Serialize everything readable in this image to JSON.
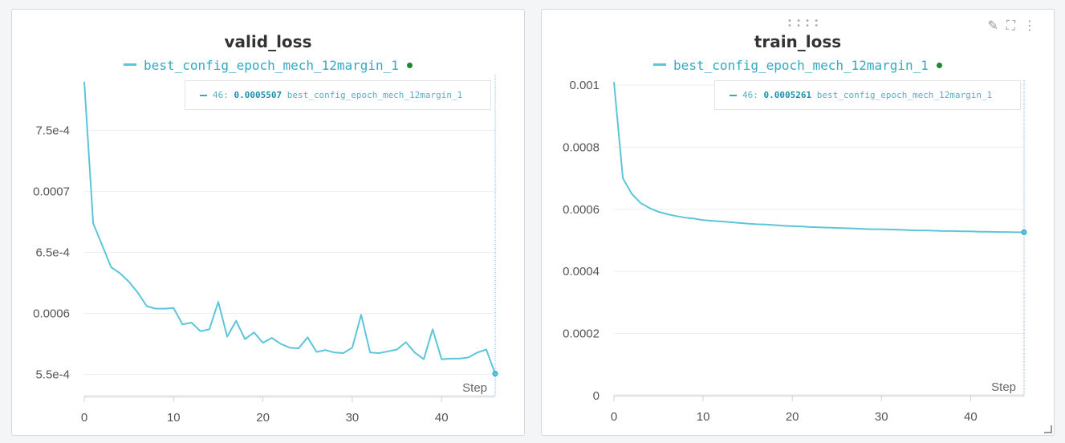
{
  "chart_data": [
    {
      "type": "line",
      "title": "valid_loss",
      "xlabel": "Step",
      "ylabel": "",
      "xlim": [
        0,
        46
      ],
      "ylim": [
        0.000532,
        0.0007912
      ],
      "x_ticks": [
        0,
        10,
        20,
        30,
        40
      ],
      "y_ticks": [
        0.00055,
        0.0006,
        0.00065,
        0.0007,
        0.00075
      ],
      "y_tick_labels": [
        "5.5e-4",
        "0.0006",
        "6.5e-4",
        "0.0007",
        "7.5e-4"
      ],
      "legend": "top-center",
      "grid": true,
      "series": [
        {
          "name": "best_config_epoch_mech_12margin_1",
          "color": "#5cc6d9",
          "x": [
            0,
            1,
            2,
            3,
            4,
            5,
            6,
            7,
            8,
            9,
            10,
            11,
            12,
            13,
            14,
            15,
            16,
            17,
            18,
            19,
            20,
            21,
            22,
            23,
            24,
            25,
            26,
            27,
            28,
            29,
            30,
            31,
            32,
            33,
            34,
            35,
            36,
            37,
            38,
            39,
            40,
            41,
            42,
            43,
            44,
            45,
            46
          ],
          "values": [
            0.00079,
            0.000674,
            0.000656,
            0.000638,
            0.000633,
            0.000626,
            0.000617,
            0.000606,
            0.000604,
            0.000604,
            0.0006045,
            0.000591,
            0.0005925,
            0.0005855,
            0.000587,
            0.0006095,
            0.000581,
            0.000594,
            0.000579,
            0.0005845,
            0.000576,
            0.00058,
            0.000575,
            0.000572,
            0.0005715,
            0.0005805,
            0.0005685,
            0.00057,
            0.000568,
            0.0005675,
            0.000572,
            0.000599,
            0.000568,
            0.0005675,
            0.000569,
            0.0005705,
            0.0005765,
            0.000568,
            0.0005625,
            0.000587,
            0.0005625,
            0.000563,
            0.000563,
            0.000564,
            0.000568,
            0.0005705,
            0.0005507
          ]
        }
      ],
      "hover": {
        "step": "46:",
        "value": "0.0005507",
        "series": "best_config_epoch_mech_12margin_1"
      }
    },
    {
      "type": "line",
      "title": "train_loss",
      "xlabel": "Step",
      "ylabel": "",
      "xlim": [
        0,
        46
      ],
      "ylim": [
        0,
        0.001
      ],
      "x_ticks": [
        0,
        10,
        20,
        30,
        40
      ],
      "y_ticks": [
        0,
        0.0002,
        0.0004,
        0.0006,
        0.0008,
        0.001
      ],
      "y_tick_labels": [
        "0",
        "0.0002",
        "0.0004",
        "0.0006",
        "0.0008",
        "0.001"
      ],
      "legend": "top-center",
      "grid": true,
      "series": [
        {
          "name": "best_config_epoch_mech_12margin_1",
          "color": "#5cc6d9",
          "x": [
            0,
            1,
            2,
            3,
            4,
            5,
            6,
            7,
            8,
            9,
            10,
            11,
            12,
            13,
            14,
            15,
            16,
            17,
            18,
            19,
            20,
            21,
            22,
            23,
            24,
            25,
            26,
            27,
            28,
            29,
            30,
            31,
            32,
            33,
            34,
            35,
            36,
            37,
            38,
            39,
            40,
            41,
            42,
            43,
            44,
            45,
            46
          ],
          "values": [
            0.00101,
            0.0007,
            0.00065,
            0.00062,
            0.000604,
            0.000592,
            0.000584,
            0.000578,
            0.000573,
            0.00057,
            0.000565,
            0.000563,
            0.000561,
            0.000559,
            0.000556,
            0.000554,
            0.000552,
            0.000551,
            0.000549,
            0.000547,
            0.000546,
            0.000545,
            0.000543,
            0.000542,
            0.000541,
            0.00054,
            0.000539,
            0.000538,
            0.000537,
            0.000536,
            0.000536,
            0.000535,
            0.000534,
            0.000533,
            0.000532,
            0.000532,
            0.000531,
            0.00053,
            0.00053,
            0.000529,
            0.000529,
            0.000528,
            0.000528,
            0.000527,
            0.000527,
            0.000526,
            0.0005261
          ]
        }
      ],
      "hover": {
        "step": "46:",
        "value": "0.0005261",
        "series": "best_config_epoch_mech_12margin_1"
      }
    }
  ]
}
